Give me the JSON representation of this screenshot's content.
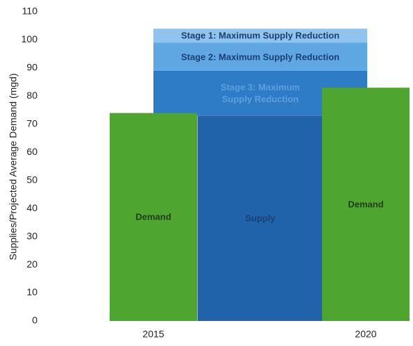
{
  "chart_data": {
    "type": "stacked_bar",
    "y_label": "Supplies/Projected Average Demand (mgd)",
    "categories": [
      "2015",
      null,
      "2020"
    ],
    "series": [
      {
        "name": "Supply",
        "color": "#2163aa",
        "label_color": "#1c3f73",
        "values": [
          null,
          73,
          null
        ]
      },
      {
        "name": "Stage 3: Maximum Supply Reduction",
        "color": "#2e7bc6",
        "label_color": "#5aa0e0",
        "values": [
          null,
          16,
          null
        ]
      },
      {
        "name": "Stage 2: Maximum Supply Reduction",
        "color": "#5ea7e2",
        "label_color": "#1c3f73",
        "values": [
          null,
          10,
          null
        ]
      },
      {
        "name": "Stage 1: Maximum Supply Reduction",
        "color": "#8fc4ee",
        "label_color": "#1c3f73",
        "values": [
          null,
          5,
          null
        ]
      },
      {
        "name": "Demand",
        "color": "#4ea52f",
        "label_color": "#1f3f16",
        "values": [
          74,
          null,
          83
        ]
      }
    ],
    "ylim": [
      0,
      110
    ],
    "yticks": [
      0,
      10,
      20,
      30,
      40,
      50,
      60,
      70,
      80,
      90,
      100,
      110
    ]
  }
}
